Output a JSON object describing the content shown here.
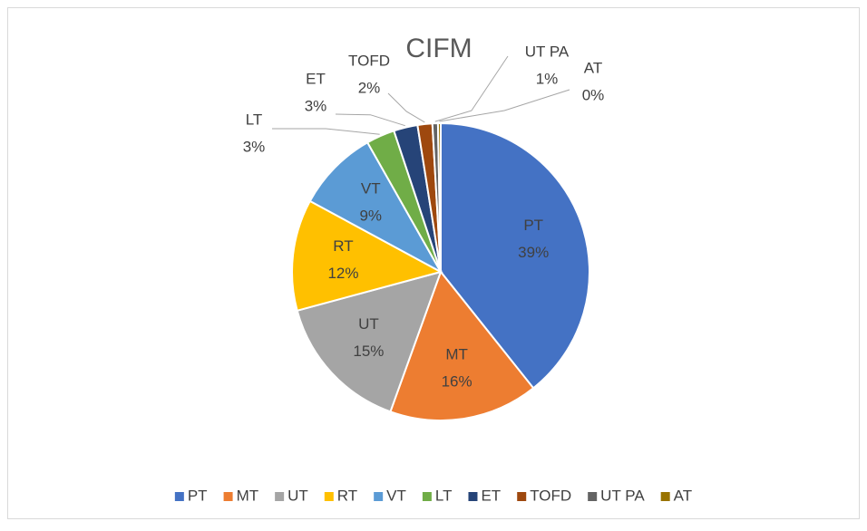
{
  "chart_data": {
    "type": "pie",
    "title": "CIFM",
    "categories": [
      "PT",
      "MT",
      "UT",
      "RT",
      "VT",
      "LT",
      "ET",
      "TOFD",
      "UT PA",
      "AT"
    ],
    "values": [
      39.3,
      16.2,
      15.3,
      12.1,
      8.9,
      3.1,
      2.6,
      1.6,
      0.6,
      0.3
    ],
    "value_labels": [
      "39%",
      "16%",
      "15%",
      "12%",
      "9%",
      "3%",
      "3%",
      "2%",
      "1%",
      "0%"
    ],
    "colors": [
      "#4472c4",
      "#ed7d31",
      "#a5a5a5",
      "#ffc000",
      "#5b9bd5",
      "#70ad47",
      "#264478",
      "#9e480e",
      "#636363",
      "#997300"
    ],
    "legend": "bottom"
  }
}
